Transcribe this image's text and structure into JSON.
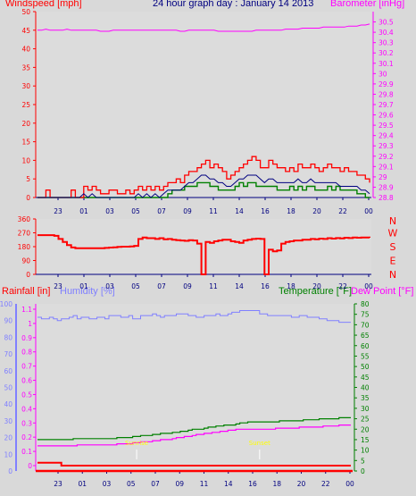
{
  "chart_data": [
    {
      "id": "wind-baro",
      "type": "line",
      "title": "24 hour graph day : January 14 2013",
      "ylabel_left": "Windspeed [mph]",
      "ylabel_right": "Barometer [inHg]",
      "ylim_left": [
        0,
        50
      ],
      "ylim_right": [
        28.8,
        30.6
      ],
      "yticks_left": [
        "0",
        "5",
        "10",
        "15",
        "20",
        "25",
        "30",
        "35",
        "40",
        "45",
        "50"
      ],
      "yticks_right": [
        "28.8",
        "28.9",
        "29",
        "29.1",
        "29.2",
        "29.3",
        "29.4",
        "29.5",
        "29.6",
        "29.7",
        "29.8",
        "29.9",
        "30",
        "30.1",
        "30.2",
        "30.3",
        "30.4",
        "30.5"
      ],
      "xticks": [
        "23",
        "01",
        "03",
        "05",
        "07",
        "09",
        "11",
        "14",
        "16",
        "18",
        "20",
        "22",
        "00"
      ],
      "colors": {
        "wind": "#ff0000",
        "avg": "#000080",
        "green": "#008000",
        "baro": "#ff00ff"
      },
      "series": [
        {
          "key": "gust",
          "values": [
            0,
            0,
            2,
            0,
            0,
            0,
            0,
            0,
            2,
            0,
            0,
            3,
            2,
            3,
            2,
            1,
            1,
            2,
            2,
            1,
            1,
            2,
            1,
            2,
            3,
            2,
            3,
            2,
            3,
            2,
            3,
            4,
            4,
            5,
            4,
            6,
            7,
            7,
            8,
            9,
            10,
            8,
            9,
            8,
            7,
            5,
            6,
            7,
            8,
            9,
            10,
            11,
            10,
            8,
            8,
            10,
            9,
            8,
            8,
            7,
            8,
            7,
            9,
            8,
            8,
            9,
            8,
            7,
            8,
            9,
            8,
            8,
            7,
            8,
            7,
            7,
            6,
            6,
            5,
            4
          ]
        },
        {
          "key": "avg",
          "values": [
            0,
            0,
            0,
            0,
            0,
            0,
            0,
            0,
            0,
            0,
            0,
            1,
            0,
            1,
            0,
            0,
            0,
            0,
            0,
            0,
            0,
            0,
            0,
            0,
            1,
            0,
            1,
            0,
            1,
            0,
            1,
            2,
            2,
            2,
            2,
            3,
            4,
            4,
            5,
            6,
            6,
            5,
            5,
            4,
            4,
            3,
            3,
            4,
            5,
            5,
            6,
            6,
            6,
            5,
            4,
            5,
            5,
            4,
            4,
            4,
            4,
            4,
            5,
            4,
            4,
            5,
            4,
            4,
            4,
            4,
            4,
            4,
            3,
            3,
            3,
            3,
            3,
            2,
            2,
            1
          ]
        },
        {
          "key": "green",
          "values": [
            0,
            0,
            0,
            0,
            0,
            0,
            0,
            0,
            0,
            0,
            0,
            0,
            0,
            0,
            0,
            0,
            0,
            0,
            0,
            0,
            0,
            0,
            0,
            0,
            0,
            0,
            0,
            0,
            0,
            0,
            0,
            1,
            2,
            2,
            2,
            3,
            3,
            3,
            4,
            4,
            4,
            3,
            3,
            2,
            2,
            2,
            2,
            3,
            4,
            3,
            4,
            4,
            3,
            3,
            3,
            3,
            3,
            2,
            2,
            2,
            3,
            2,
            3,
            2,
            3,
            3,
            2,
            2,
            2,
            3,
            2,
            3,
            2,
            2,
            2,
            2,
            1,
            1,
            0,
            0
          ]
        },
        {
          "key": "baro",
          "values": [
            30.42,
            30.42,
            30.43,
            30.42,
            30.42,
            30.42,
            30.42,
            30.43,
            30.42,
            30.42,
            30.42,
            30.42,
            30.42,
            30.42,
            30.42,
            30.41,
            30.41,
            30.41,
            30.42,
            30.42,
            30.42,
            30.42,
            30.42,
            30.42,
            30.42,
            30.42,
            30.42,
            30.42,
            30.42,
            30.42,
            30.42,
            30.42,
            30.42,
            30.42,
            30.41,
            30.41,
            30.42,
            30.42,
            30.42,
            30.42,
            30.42,
            30.42,
            30.42,
            30.41,
            30.41,
            30.41,
            30.41,
            30.41,
            30.41,
            30.41,
            30.41,
            30.41,
            30.42,
            30.42,
            30.42,
            30.42,
            30.42,
            30.42,
            30.42,
            30.43,
            30.43,
            30.43,
            30.43,
            30.44,
            30.44,
            30.44,
            30.44,
            30.44,
            30.45,
            30.45,
            30.45,
            30.45,
            30.45,
            30.45,
            30.46,
            30.46,
            30.46,
            30.47,
            30.47,
            30.48
          ]
        }
      ]
    },
    {
      "id": "direction",
      "type": "line",
      "ylim": [
        0,
        360
      ],
      "yticks": [
        "0",
        "90",
        "180",
        "270",
        "360"
      ],
      "compass": [
        "N",
        "W",
        "S",
        "E",
        "N"
      ],
      "xticks": [
        "23",
        "01",
        "03",
        "05",
        "07",
        "09",
        "11",
        "14",
        "16",
        "18",
        "20",
        "22",
        "00"
      ],
      "color": "#ff0000",
      "series": [
        {
          "key": "direction",
          "values": [
            255,
            255,
            255,
            255,
            250,
            230,
            210,
            190,
            175,
            170,
            170,
            170,
            170,
            170,
            170,
            170,
            172,
            174,
            176,
            178,
            180,
            180,
            182,
            185,
            230,
            240,
            235,
            235,
            230,
            235,
            228,
            230,
            225,
            222,
            220,
            218,
            222,
            220,
            200,
            0,
            210,
            205,
            215,
            220,
            225,
            225,
            215,
            210,
            205,
            220,
            225,
            230,
            232,
            230,
            0,
            160,
            150,
            155,
            200,
            210,
            215,
            220,
            220,
            225,
            225,
            230,
            228,
            232,
            230,
            235,
            232,
            236,
            234,
            238,
            236,
            240,
            238,
            240,
            240,
            238
          ]
        }
      ]
    },
    {
      "id": "rain-hum-temp",
      "type": "line",
      "ylabel_left_1": "Rainfall [in]",
      "ylabel_left_2": "Humidity [%]",
      "ylabel_right_1": "Temperature [°F]",
      "ylabel_right_2": "Dew Point [°F]",
      "ylim_humidity": [
        0,
        100
      ],
      "ylim_rain": [
        0,
        1.1
      ],
      "ylim_temp": [
        0,
        80
      ],
      "yticks_humidity": [
        "0",
        "10",
        "20",
        "30",
        "40",
        "50",
        "60",
        "70",
        "80",
        "90",
        "100"
      ],
      "yticks_rain": [
        "0",
        "0.1",
        "0.2",
        "0.3",
        "0.4",
        "0.5",
        "0.6",
        "0.7",
        "0.8",
        "0.9",
        "1",
        "1.1"
      ],
      "yticks_temp": [
        "0",
        "5",
        "10",
        "15",
        "20",
        "25",
        "30",
        "35",
        "40",
        "45",
        "50",
        "55",
        "60",
        "65",
        "70",
        "75",
        "80"
      ],
      "xticks": [
        "23",
        "01",
        "03",
        "05",
        "07",
        "09",
        "11",
        "14",
        "16",
        "18",
        "20",
        "22",
        "00"
      ],
      "colors": {
        "rain": "#ff0000",
        "humidity": "#8080ff",
        "temperature": "#008000",
        "dewpoint": "#ff00ff",
        "marker": "#ffff00"
      },
      "markers": [
        {
          "label": "Sunrise",
          "x_index": 25
        },
        {
          "label": "Sunset",
          "x_index": 56
        }
      ],
      "series": [
        {
          "key": "humidity",
          "values": [
            92,
            91,
            91,
            92,
            91,
            90,
            91,
            91,
            92,
            93,
            91,
            92,
            92,
            91,
            91,
            92,
            92,
            91,
            93,
            93,
            93,
            92,
            92,
            93,
            91,
            91,
            93,
            93,
            93,
            94,
            93,
            92,
            93,
            93,
            93,
            94,
            94,
            94,
            93,
            93,
            92,
            92,
            93,
            93,
            93,
            94,
            93,
            93,
            94,
            95,
            95,
            96,
            96,
            96,
            96,
            96,
            94,
            94,
            93,
            93,
            93,
            93,
            93,
            93,
            92,
            92,
            93,
            93,
            92,
            92,
            92,
            91,
            91,
            90,
            90,
            90,
            89,
            89,
            89,
            89
          ]
        },
        {
          "key": "temperature",
          "values": [
            15,
            15,
            15,
            15,
            15,
            15,
            15,
            15,
            15,
            15.5,
            15.5,
            15.5,
            15.5,
            15.5,
            15.5,
            15.5,
            15.5,
            15.5,
            15.5,
            15.5,
            16,
            16,
            16,
            16,
            16.5,
            16.5,
            17,
            17,
            17,
            17.5,
            17.5,
            18,
            18,
            18,
            18.5,
            18.5,
            19,
            19,
            19.5,
            20,
            20,
            20,
            20.5,
            21,
            21,
            21.5,
            21.5,
            22,
            22,
            22,
            22.5,
            23,
            23,
            23.5,
            23.5,
            23.5,
            23.5,
            23.5,
            23.5,
            23.5,
            23.5,
            24,
            24,
            24,
            24,
            24,
            24,
            24.5,
            24.5,
            24.5,
            24.5,
            25,
            25,
            25,
            25,
            25,
            25.5,
            25.5,
            25.5,
            25.5
          ]
        },
        {
          "key": "dewpoint",
          "values": [
            12,
            12,
            12,
            12,
            12,
            12,
            12,
            12,
            12,
            12,
            12.5,
            12.5,
            12.5,
            12.5,
            12.5,
            12.5,
            12.5,
            12.5,
            12.5,
            12.5,
            13,
            13,
            13,
            13,
            13.5,
            13.5,
            14,
            14,
            14,
            14.5,
            14.5,
            15,
            15,
            15,
            15.5,
            16,
            16,
            16.5,
            16.5,
            17,
            17.5,
            17.5,
            18,
            18,
            18.5,
            18.5,
            19,
            19,
            19.5,
            19.5,
            20,
            20,
            20,
            20,
            20,
            20,
            20,
            20,
            20,
            20,
            20.5,
            20.5,
            20.5,
            20.5,
            20.5,
            20.5,
            21,
            21,
            21,
            21,
            21,
            21,
            21.5,
            21.5,
            21.5,
            21.5,
            22,
            22,
            22,
            22
          ]
        },
        {
          "key": "rain",
          "values": [
            0.02,
            0.02,
            0.02,
            0.02,
            0.02,
            0.02,
            0,
            0,
            0,
            0,
            0,
            0,
            0,
            0,
            0,
            0,
            0,
            0,
            0,
            0,
            0,
            0,
            0,
            0,
            0,
            0,
            0,
            0,
            0,
            0,
            0,
            0,
            0,
            0,
            0,
            0,
            0,
            0,
            0,
            0,
            0,
            0,
            0,
            0,
            0,
            0,
            0,
            0,
            0,
            0,
            0,
            0,
            0,
            0,
            0,
            0,
            0,
            0,
            0,
            0,
            0,
            0,
            0,
            0,
            0,
            0,
            0,
            0,
            0,
            0,
            0,
            0,
            0,
            0,
            0,
            0,
            0,
            0,
            0,
            0
          ]
        }
      ]
    }
  ]
}
